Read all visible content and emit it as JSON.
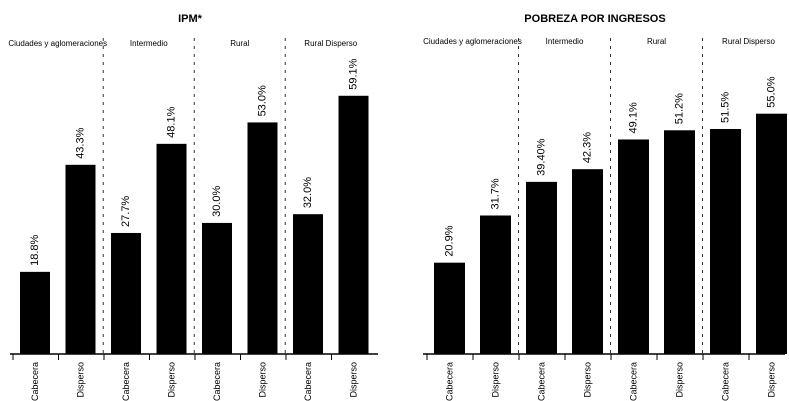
{
  "chart_data": [
    {
      "type": "bar",
      "title": "IPM*",
      "groups": [
        "Ciudades y aglomeraciones",
        "Intermedio",
        "Rural",
        "Rural Disperso"
      ],
      "categories": [
        "Cabecera",
        "Disperso",
        "Cabecera",
        "Disperso",
        "Cabecera",
        "Disperso",
        "Cabecera",
        "Disperso"
      ],
      "values": [
        18.8,
        43.3,
        27.7,
        48.1,
        30.0,
        53.0,
        32.0,
        59.1
      ],
      "value_labels": [
        "18.8%",
        "43.3%",
        "27.7%",
        "48.1%",
        "30.0%",
        "53.0%",
        "32.0%",
        "59.1%"
      ],
      "ylim": [
        0,
        65
      ],
      "bar_color": "#000000",
      "grid": false
    },
    {
      "type": "bar",
      "title": "POBREZA POR INGRESOS",
      "groups": [
        "Ciudades y aglomeraciones",
        "Intermedio",
        "Rural",
        "Rural Disperso"
      ],
      "categories": [
        "Cabecera",
        "Disperso",
        "Cabecera",
        "Disperso",
        "Cabecera",
        "Disperso",
        "Cabecera",
        "Disperso"
      ],
      "values": [
        20.9,
        31.7,
        39.4,
        42.3,
        49.1,
        51.2,
        51.5,
        55.0
      ],
      "value_labels": [
        "20.9%",
        "31.7%",
        "39.40%",
        "42.3%",
        "49.1%",
        "51.2%",
        "51.5%",
        "55.0%"
      ],
      "ylim": [
        0,
        65
      ],
      "bar_color": "#000000",
      "grid": false
    }
  ]
}
